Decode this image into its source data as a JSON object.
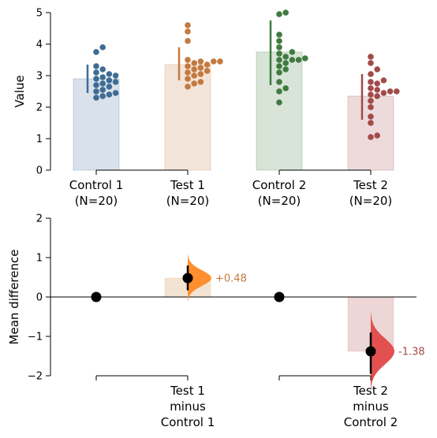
{
  "chart_data": [
    {
      "type": "bar",
      "overlay": "swarm",
      "ylabel": "Value",
      "ylim": [
        0,
        5
      ],
      "yticks": [
        "0",
        "1",
        "2",
        "3",
        "4",
        "5"
      ],
      "grid": false,
      "groups": [
        {
          "tick_lines": [
            "Control 1",
            "(N=20)"
          ],
          "color": "#3f6c94",
          "bar_mean": 2.9,
          "sd_range": [
            2.45,
            3.35
          ],
          "points": [
            2.3,
            2.35,
            2.4,
            2.45,
            2.5,
            2.55,
            2.65,
            2.75,
            2.8,
            2.85,
            2.9,
            2.95,
            3.0,
            3.05,
            3.1,
            3.2,
            3.3,
            3.75,
            3.9,
            2.7
          ]
        },
        {
          "tick_lines": [
            "Test 1",
            "(N=20)"
          ],
          "color": "#c47a3f",
          "bar_mean": 3.35,
          "sd_range": [
            2.85,
            3.9
          ],
          "points": [
            2.65,
            2.75,
            2.8,
            2.9,
            3.0,
            3.05,
            3.1,
            3.15,
            3.2,
            3.25,
            3.3,
            3.35,
            3.4,
            3.45,
            3.5,
            3.45,
            3.45,
            4.1,
            4.4,
            4.6
          ]
        },
        {
          "tick_lines": [
            "Control 2",
            "(N=20)"
          ],
          "color": "#3f7a3f",
          "bar_mean": 3.75,
          "sd_range": [
            2.7,
            4.75
          ],
          "points": [
            2.15,
            2.5,
            2.6,
            2.8,
            3.1,
            3.2,
            3.3,
            3.4,
            3.5,
            3.5,
            3.5,
            3.55,
            3.6,
            3.7,
            3.75,
            3.9,
            4.1,
            4.3,
            4.95,
            5.0
          ]
        },
        {
          "tick_lines": [
            "Test 2",
            "(N=20)"
          ],
          "color": "#a34a4a",
          "bar_mean": 2.35,
          "sd_range": [
            1.6,
            3.05
          ],
          "points": [
            1.05,
            1.1,
            1.5,
            1.7,
            2.0,
            2.2,
            2.35,
            2.4,
            2.45,
            2.5,
            2.55,
            2.6,
            2.75,
            2.8,
            2.85,
            3.05,
            3.2,
            3.4,
            3.6,
            2.5
          ]
        }
      ]
    },
    {
      "type": "estimation",
      "ylabel": "Mean difference",
      "ylim": [
        -2,
        2
      ],
      "yticks": [
        "−2",
        "−1",
        "0",
        "1",
        "2"
      ],
      "grid": false,
      "comparisons": [
        {
          "tick_lines": [
            "Test 1",
            "minus",
            "Control 1"
          ],
          "diff": 0.48,
          "label": "+0.48",
          "ci": [
            0.17,
            0.8
          ],
          "color": "#ff8f2f",
          "label_color": "#c47a3f",
          "bar_fill": "#f3e3d3"
        },
        {
          "tick_lines": [
            "Test 2",
            "minus",
            "Control 2"
          ],
          "diff": -1.38,
          "label": "-1.38",
          "ci": [
            -1.95,
            -0.9
          ],
          "color": "#e35050",
          "label_color": "#a34a4a",
          "bar_fill": "#ecd6d6"
        }
      ]
    }
  ]
}
